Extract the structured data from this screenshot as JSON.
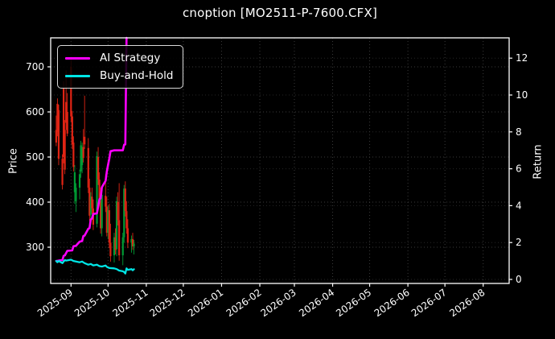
{
  "title": "cnoption [MO2511-P-7600.CFX]",
  "axes": {
    "price_label": "Price",
    "return_label": "Return"
  },
  "legend": {
    "position": "upper left",
    "items": [
      {
        "label": "AI Strategy",
        "color": "#ff00ff"
      },
      {
        "label": "Buy-and-Hold",
        "color": "#00e5e5"
      }
    ]
  },
  "colors": {
    "background": "#000000",
    "text": "#ffffff",
    "axis_border": "#ffffff",
    "grid_major": "#3a3a3a",
    "grid_return": "#262626",
    "candle_up": "#009b34",
    "candle_down": "#e02414",
    "ai_strategy": "#ff00ff",
    "buy_and_hold": "#00e5e5"
  },
  "chart_data": {
    "type": "candlestick",
    "title": "cnoption [MO2511-P-7600.CFX]",
    "ylabel_left": "Price",
    "ylabel_right": "Return",
    "grid": true,
    "legend_position": "upper left",
    "price_ticks": [
      300,
      400,
      500,
      600,
      700
    ],
    "price_ylim": [
      220,
      765
    ],
    "return_ticks": [
      0,
      2,
      4,
      6,
      8,
      10,
      12
    ],
    "return_ylim": [
      -0.22,
      13.1
    ],
    "x_domain": [
      "2025-08-15",
      "2026-08-22"
    ],
    "x_ticks": [
      {
        "label": "2025-09",
        "date": "2025-09-01"
      },
      {
        "label": "2025-10",
        "date": "2025-10-01"
      },
      {
        "label": "2025-11",
        "date": "2025-11-01"
      },
      {
        "label": "2025-12",
        "date": "2025-12-01"
      },
      {
        "label": "2026-01",
        "date": "2026-01-01"
      },
      {
        "label": "2026-02",
        "date": "2026-02-01"
      },
      {
        "label": "2026-03",
        "date": "2026-03-01"
      },
      {
        "label": "2026-04",
        "date": "2026-04-01"
      },
      {
        "label": "2026-05",
        "date": "2026-05-01"
      },
      {
        "label": "2026-06",
        "date": "2026-06-01"
      },
      {
        "label": "2026-07",
        "date": "2026-07-01"
      },
      {
        "label": "2026-08",
        "date": "2026-08-01"
      }
    ],
    "candles_axis": "price",
    "candles": [
      [
        "2025-08-20",
        560,
        592,
        524,
        532
      ],
      [
        "2025-08-21",
        618,
        630,
        546,
        556
      ],
      [
        "2025-08-22",
        604,
        616,
        482,
        496
      ],
      [
        "2025-08-25",
        496,
        506,
        428,
        438
      ],
      [
        "2025-08-26",
        652,
        668,
        486,
        500
      ],
      [
        "2025-08-27",
        560,
        582,
        462,
        472
      ],
      [
        "2025-08-28",
        622,
        692,
        560,
        576
      ],
      [
        "2025-08-29",
        600,
        642,
        546,
        552
      ],
      [
        "2025-09-01",
        700,
        723,
        578,
        590
      ],
      [
        "2025-09-02",
        590,
        602,
        518,
        528
      ],
      [
        "2025-09-03",
        532,
        546,
        468,
        478
      ],
      [
        "2025-09-04",
        422,
        482,
        396,
        466
      ],
      [
        "2025-09-05",
        402,
        442,
        378,
        432
      ],
      [
        "2025-09-08",
        432,
        472,
        406,
        462
      ],
      [
        "2025-09-09",
        468,
        536,
        454,
        526
      ],
      [
        "2025-09-10",
        482,
        532,
        464,
        522
      ],
      [
        "2025-09-11",
        522,
        562,
        488,
        498
      ],
      [
        "2025-09-12",
        545,
        636,
        518,
        528
      ],
      [
        "2025-09-15",
        520,
        542,
        420,
        432
      ],
      [
        "2025-09-16",
        432,
        452,
        358,
        370
      ],
      [
        "2025-09-17",
        372,
        422,
        354,
        412
      ],
      [
        "2025-09-18",
        412,
        432,
        374,
        386
      ],
      [
        "2025-09-19",
        386,
        406,
        338,
        350
      ],
      [
        "2025-09-22",
        352,
        512,
        344,
        502
      ],
      [
        "2025-09-23",
        500,
        522,
        438,
        450
      ],
      [
        "2025-09-24",
        450,
        466,
        400,
        408
      ],
      [
        "2025-09-25",
        402,
        432,
        330,
        342
      ],
      [
        "2025-09-26",
        342,
        426,
        324,
        416
      ],
      [
        "2025-09-29",
        414,
        462,
        378,
        390
      ],
      [
        "2025-09-30",
        390,
        412,
        324,
        332
      ],
      [
        "2025-10-01",
        332,
        392,
        318,
        382
      ],
      [
        "2025-10-02",
        382,
        396,
        298,
        310
      ],
      [
        "2025-10-03",
        310,
        352,
        268,
        280
      ],
      [
        "2025-10-06",
        282,
        332,
        266,
        322
      ],
      [
        "2025-10-07",
        322,
        342,
        284,
        294
      ],
      [
        "2025-10-08",
        296,
        412,
        280,
        402
      ],
      [
        "2025-10-09",
        400,
        422,
        348,
        360
      ],
      [
        "2025-10-10",
        360,
        442,
        270,
        282
      ],
      [
        "2025-10-13",
        282,
        332,
        260,
        322
      ],
      [
        "2025-10-14",
        322,
        438,
        310,
        430
      ],
      [
        "2025-10-15",
        430,
        446,
        368,
        380
      ],
      [
        "2025-10-16",
        380,
        402,
        330,
        342
      ],
      [
        "2025-10-17",
        342,
        362,
        298,
        310
      ],
      [
        "2025-10-20",
        310,
        326,
        288,
        318
      ],
      [
        "2025-10-21",
        318,
        332,
        294,
        302
      ],
      [
        "2025-10-22",
        302,
        316,
        284,
        308
      ]
    ],
    "series": [
      {
        "name": "AI Strategy",
        "axis": "return",
        "color": "#ff00ff",
        "points": [
          [
            "2025-08-20",
            1.0
          ],
          [
            "2025-08-22",
            1.02
          ],
          [
            "2025-08-25",
            1.05
          ],
          [
            "2025-08-26",
            1.28
          ],
          [
            "2025-08-27",
            1.3
          ],
          [
            "2025-08-29",
            1.55
          ],
          [
            "2025-09-02",
            1.57
          ],
          [
            "2025-09-03",
            1.8
          ],
          [
            "2025-09-05",
            1.82
          ],
          [
            "2025-09-08",
            2.05
          ],
          [
            "2025-09-10",
            2.08
          ],
          [
            "2025-09-11",
            2.35
          ],
          [
            "2025-09-12",
            2.38
          ],
          [
            "2025-09-15",
            2.75
          ],
          [
            "2025-09-16",
            2.78
          ],
          [
            "2025-09-17",
            3.25
          ],
          [
            "2025-09-18",
            3.3
          ],
          [
            "2025-09-19",
            3.55
          ],
          [
            "2025-09-22",
            3.58
          ],
          [
            "2025-09-23",
            3.95
          ],
          [
            "2025-09-24",
            4.35
          ],
          [
            "2025-09-25",
            4.4
          ],
          [
            "2025-09-26",
            5.0
          ],
          [
            "2025-09-29",
            5.35
          ],
          [
            "2025-09-30",
            5.85
          ],
          [
            "2025-10-01",
            6.2
          ],
          [
            "2025-10-02",
            6.55
          ],
          [
            "2025-10-03",
            6.95
          ],
          [
            "2025-10-06",
            7.0
          ],
          [
            "2025-10-13",
            7.0
          ],
          [
            "2025-10-14",
            7.3
          ],
          [
            "2025-10-15",
            7.32
          ],
          [
            "2025-10-16",
            13.1
          ]
        ]
      },
      {
        "name": "Buy-and-Hold",
        "axis": "return",
        "color": "#00e5e5",
        "points": [
          [
            "2025-08-20",
            1.0
          ],
          [
            "2025-08-21",
            0.93
          ],
          [
            "2025-08-22",
            1.0
          ],
          [
            "2025-08-25",
            0.88
          ],
          [
            "2025-08-26",
            0.97
          ],
          [
            "2025-08-27",
            1.05
          ],
          [
            "2025-08-28",
            1.02
          ],
          [
            "2025-09-01",
            1.07
          ],
          [
            "2025-09-03",
            1.0
          ],
          [
            "2025-09-05",
            0.97
          ],
          [
            "2025-09-08",
            0.93
          ],
          [
            "2025-09-10",
            0.97
          ],
          [
            "2025-09-12",
            0.88
          ],
          [
            "2025-09-15",
            0.8
          ],
          [
            "2025-09-17",
            0.84
          ],
          [
            "2025-09-19",
            0.76
          ],
          [
            "2025-09-22",
            0.8
          ],
          [
            "2025-09-24",
            0.72
          ],
          [
            "2025-09-26",
            0.7
          ],
          [
            "2025-09-29",
            0.75
          ],
          [
            "2025-09-30",
            0.68
          ],
          [
            "2025-10-02",
            0.62
          ],
          [
            "2025-10-06",
            0.6
          ],
          [
            "2025-10-08",
            0.56
          ],
          [
            "2025-10-10",
            0.48
          ],
          [
            "2025-10-13",
            0.44
          ],
          [
            "2025-10-14",
            0.4
          ],
          [
            "2025-10-15",
            0.32
          ],
          [
            "2025-10-16",
            0.6
          ],
          [
            "2025-10-17",
            0.52
          ],
          [
            "2025-10-20",
            0.56
          ],
          [
            "2025-10-21",
            0.5
          ],
          [
            "2025-10-22",
            0.55
          ]
        ]
      }
    ]
  }
}
